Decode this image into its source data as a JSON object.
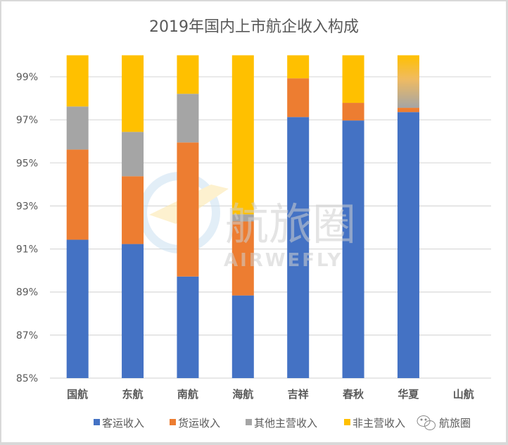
{
  "chart_data": {
    "type": "bar",
    "stacked": true,
    "title": "2019年国内上市航企收入构成",
    "xlabel": "",
    "ylabel": "",
    "ylim": [
      85,
      100
    ],
    "y_ticks": [
      85,
      87,
      89,
      91,
      93,
      95,
      97,
      99
    ],
    "y_tick_labels": [
      "85%",
      "87%",
      "89%",
      "91%",
      "93%",
      "95%",
      "97%",
      "99%"
    ],
    "grid": true,
    "legend_position": "bottom",
    "categories": [
      "国航",
      "东航",
      "南航",
      "海航",
      "吉祥",
      "春秋",
      "华夏",
      "山航"
    ],
    "series": [
      {
        "name": "客运收入",
        "color": "#4472c4",
        "values": [
          91.43,
          91.23,
          89.72,
          88.84,
          97.13,
          96.97,
          97.36,
          null
        ]
      },
      {
        "name": "货运收入",
        "color": "#ed7d31",
        "values": [
          4.19,
          3.15,
          6.23,
          3.44,
          1.8,
          0.82,
          0.2,
          null
        ]
      },
      {
        "name": "其他主营收入",
        "color": "#a5a5a5",
        "values": [
          2.0,
          2.06,
          2.26,
          0.33,
          0,
          0,
          0,
          null
        ]
      },
      {
        "name": "非主营收入",
        "color": "#ffc000",
        "values": [
          2.38,
          3.56,
          1.79,
          7.39,
          1.07,
          2.21,
          2.44,
          null
        ]
      }
    ],
    "notes": "华夏 top segment drawn with a yellow-to-gray gradient fill"
  },
  "watermark": {
    "brand_cn": "航旅圈",
    "brand_en": "AIRWEFLY"
  },
  "footer": {
    "wechat_icon": "wechat-icon",
    "account": "航旅圈"
  }
}
